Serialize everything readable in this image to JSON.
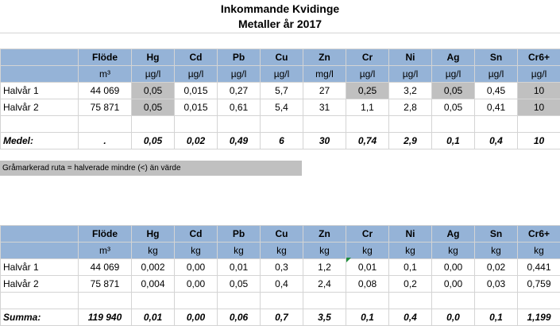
{
  "title": "Inkommande Kvidinge",
  "subtitle": "Metaller år 2017",
  "columns": [
    "Flöde",
    "Hg",
    "Cd",
    "Pb",
    "Cu",
    "Zn",
    "Cr",
    "Ni",
    "Ag",
    "Sn",
    "Cr6+"
  ],
  "conc_units": [
    "m³",
    "µg/l",
    "µg/l",
    "µg/l",
    "µg/l",
    "mg/l",
    "µg/l",
    "µg/l",
    "µg/l",
    "µg/l",
    "µg/l"
  ],
  "conc_rows": [
    {
      "label": "Halvår 1",
      "values": [
        "44 069",
        "0,05",
        "0,015",
        "0,27",
        "5,7",
        "27",
        "0,25",
        "3,2",
        "0,05",
        "0,45",
        "10"
      ]
    },
    {
      "label": "Halvår 2",
      "values": [
        "75 871",
        "0,05",
        "0,015",
        "0,61",
        "5,4",
        "31",
        "1,1",
        "2,8",
        "0,05",
        "0,41",
        "10"
      ]
    }
  ],
  "medel": {
    "label": "Medel:",
    "values": [
      ".",
      "0,05",
      "0,02",
      "0,49",
      "6",
      "30",
      "0,74",
      "2,9",
      "0,1",
      "0,4",
      "10"
    ]
  },
  "note": "Gråmarkerad ruta = halverade mindre (<) än värde",
  "load_units": [
    "m³",
    "kg",
    "kg",
    "kg",
    "kg",
    "kg",
    "kg",
    "kg",
    "kg",
    "kg",
    "kg"
  ],
  "load_rows": [
    {
      "label": "Halvår 1",
      "values": [
        "44 069",
        "0,002",
        "0,00",
        "0,01",
        "0,3",
        "1,2",
        "0,01",
        "0,1",
        "0,00",
        "0,02",
        "0,441"
      ]
    },
    {
      "label": "Halvår 2",
      "values": [
        "75 871",
        "0,004",
        "0,00",
        "0,05",
        "0,4",
        "2,4",
        "0,08",
        "0,2",
        "0,00",
        "0,03",
        "0,759"
      ]
    }
  ],
  "summa": {
    "label": "Summa:",
    "values": [
      "119 940",
      "0,01",
      "0,00",
      "0,06",
      "0,7",
      "3,5",
      "0,1",
      "0,4",
      "0,0",
      "0,1",
      "1,199"
    ]
  }
}
